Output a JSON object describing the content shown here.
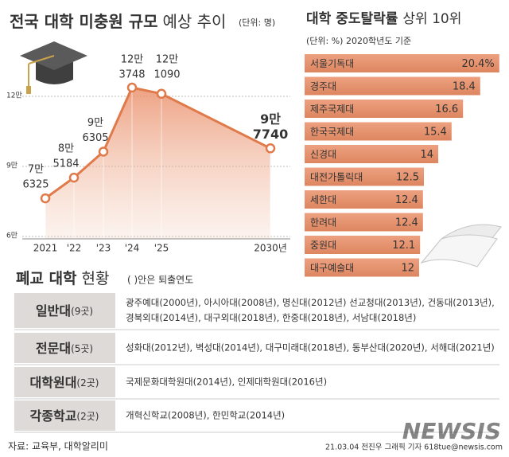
{
  "chart_data": [
    {
      "type": "area",
      "title": [
        "전국 대학 미충원 규모",
        "예상 추이"
      ],
      "subtitle": "(단위: 명)",
      "categories": [
        "2021",
        "'22",
        "'23",
        "'24",
        "'25",
        "2030년"
      ],
      "values": [
        76325,
        85184,
        96305,
        123748,
        121090,
        97740
      ],
      "value_labels": [
        [
          "7만",
          "6325"
        ],
        [
          "8만",
          "5184"
        ],
        [
          "9만",
          "6305"
        ],
        [
          "12만",
          "3748"
        ],
        [
          "12만",
          "1090"
        ],
        [
          "9만",
          "7740"
        ]
      ],
      "color": "#e07a4a",
      "ylim": [
        60000,
        120000
      ],
      "yticks": [
        {
          "value": 120000,
          "label": "12만"
        },
        {
          "value": 90000,
          "label": "9만"
        },
        {
          "value": 60000,
          "label": "6만"
        }
      ],
      "grid": true
    },
    {
      "type": "hbar",
      "title": [
        "대학 중도탈락률",
        "상위 10위"
      ],
      "subtitle": "(단위: %) 2020학년도 기준",
      "categories": [
        "서울기독대",
        "경주대",
        "제주국제대",
        "한국국제대",
        "신경대",
        "대전가톨릭대",
        "세한대",
        "한려대",
        "중원대",
        "대구예술대"
      ],
      "values": [
        20.4,
        18.4,
        16.6,
        15.4,
        14,
        12.5,
        12.4,
        12.4,
        12.1,
        12
      ],
      "value_labels": [
        "20.4%",
        "18.4",
        "16.6",
        "15.4",
        "14",
        "12.5",
        "12.4",
        "12.4",
        "12.1",
        "12"
      ],
      "color": "#e3916d",
      "xlim": [
        0,
        21
      ]
    }
  ],
  "table": {
    "title": [
      "폐교 대학",
      "현황"
    ],
    "note": "( )안은 퇴출연도",
    "rows": [
      {
        "category": "일반대",
        "count": "(9곳)",
        "schools": [
          "광주예대(2000년), 아시아대(2008년), 명신대(2012년) 선교청대(2013년), 건동대(2013년),",
          "경북외대(2014년), 대구외대(2018년), 한중대(2018년), 서남대(2018년)"
        ]
      },
      {
        "category": "전문대",
        "count": "(5곳)",
        "schools": [
          "성화대(2012년), 벽성대(2014년), 대구미래대(2018년), 동부산대(2020년), 서해대(2021년)"
        ]
      },
      {
        "category": "대학원대",
        "count": "(2곳)",
        "schools": [
          "국제문화대학원대(2014년), 인제대학원대(2016년)"
        ]
      },
      {
        "category": "각종학교",
        "count": "(2곳)",
        "schools": [
          "개혁신학교(2008년), 한민학교(2014년)"
        ]
      }
    ]
  },
  "footer": {
    "source": "자료: 교육부, 대학알리미",
    "credit": "21.03.04 전진우 그래픽 기자 618tue@newsis.com",
    "watermark": "NEWSIS"
  }
}
